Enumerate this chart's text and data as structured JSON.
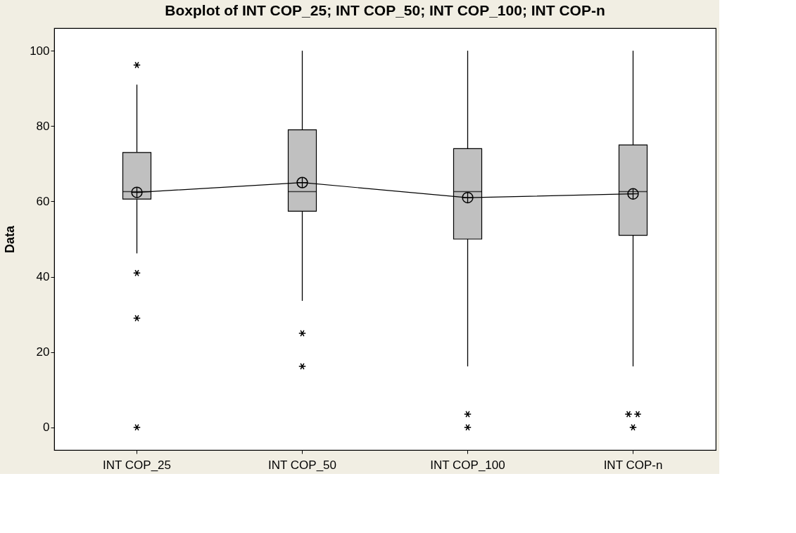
{
  "chart_data": {
    "type": "box",
    "title": "Boxplot of INT COP_25; INT COP_50; INT COP_100; INT COP-n",
    "ylabel": "Data",
    "categories": [
      "INT COP_25",
      "INT COP_50",
      "INT COP_100",
      "INT COP-n"
    ],
    "boxes": [
      {
        "low": 46.2,
        "q1": 60.6,
        "median": 62.6,
        "q3": 73,
        "high": 91,
        "mean": 62.4,
        "outliers": [
          96.2,
          41,
          29,
          0
        ]
      },
      {
        "low": 33.6,
        "q1": 57.4,
        "median": 62.6,
        "q3": 79,
        "high": 100,
        "mean": 65,
        "outliers": [
          25,
          16.2
        ]
      },
      {
        "low": 16.2,
        "q1": 50,
        "median": 62.6,
        "q3": 74,
        "high": 100,
        "mean": 61,
        "outliers": [
          3.5,
          0
        ]
      },
      {
        "low": 16.2,
        "q1": 51,
        "median": 62.6,
        "q3": 75,
        "high": 100,
        "mean": 62,
        "outliers": [
          3.5,
          3.5,
          0
        ]
      }
    ],
    "color": "#c0c0c0",
    "series": [
      {
        "type": "line",
        "color": "#000000",
        "values": [
          62.4,
          65,
          61,
          62
        ]
      }
    ],
    "ylim": [
      -6,
      106
    ],
    "yticks": [
      0,
      20,
      40,
      60,
      80,
      100
    ],
    "grid": false
  }
}
